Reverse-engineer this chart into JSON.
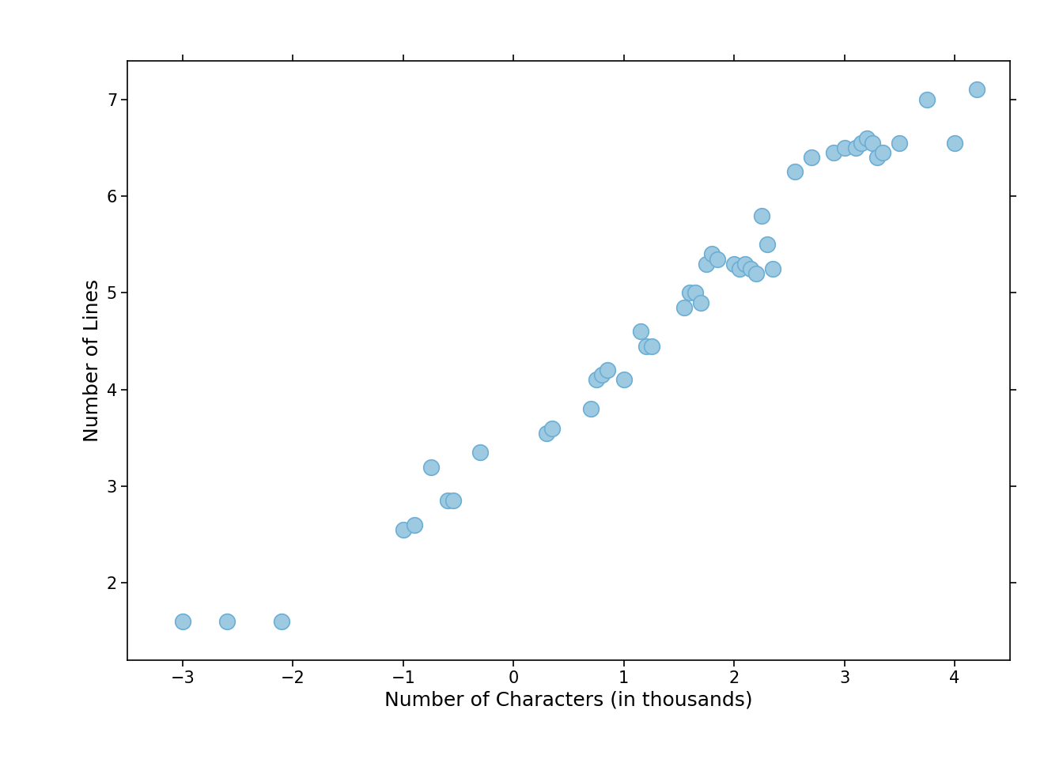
{
  "x": [
    -3.0,
    -2.6,
    -2.1,
    -1.0,
    -0.9,
    -0.75,
    -0.6,
    -0.55,
    -0.3,
    0.3,
    0.35,
    0.7,
    0.75,
    0.8,
    0.85,
    1.0,
    1.15,
    1.2,
    1.25,
    1.55,
    1.6,
    1.65,
    1.7,
    1.75,
    1.8,
    1.85,
    2.0,
    2.05,
    2.1,
    2.15,
    2.2,
    2.25,
    2.3,
    2.35,
    2.55,
    2.7,
    2.9,
    3.0,
    3.1,
    3.15,
    3.2,
    3.25,
    3.3,
    3.35,
    3.5,
    3.75,
    4.0,
    4.2
  ],
  "y": [
    1.6,
    1.6,
    1.6,
    2.55,
    2.6,
    3.2,
    2.85,
    2.85,
    3.35,
    3.55,
    3.6,
    3.8,
    4.1,
    4.15,
    4.2,
    4.1,
    4.6,
    4.45,
    4.45,
    4.85,
    5.0,
    5.0,
    4.9,
    5.3,
    5.4,
    5.35,
    5.3,
    5.25,
    5.3,
    5.25,
    5.2,
    5.8,
    5.5,
    5.25,
    6.25,
    6.4,
    6.45,
    6.5,
    6.5,
    6.55,
    6.6,
    6.55,
    6.4,
    6.45,
    6.55,
    7.0,
    6.55,
    7.1
  ],
  "xlabel": "Number of Characters (in thousands)",
  "ylabel": "Number of Lines",
  "xlim": [
    -3.5,
    4.5
  ],
  "ylim": [
    1.2,
    7.4
  ],
  "xticks": [
    -3,
    -2,
    -1,
    0,
    1,
    2,
    3,
    4
  ],
  "yticks": [
    2,
    3,
    4,
    5,
    6,
    7
  ],
  "marker_color": "#9ecae1",
  "marker_edge_color": "#6baed6",
  "marker_size": 200,
  "background_color": "#ffffff"
}
